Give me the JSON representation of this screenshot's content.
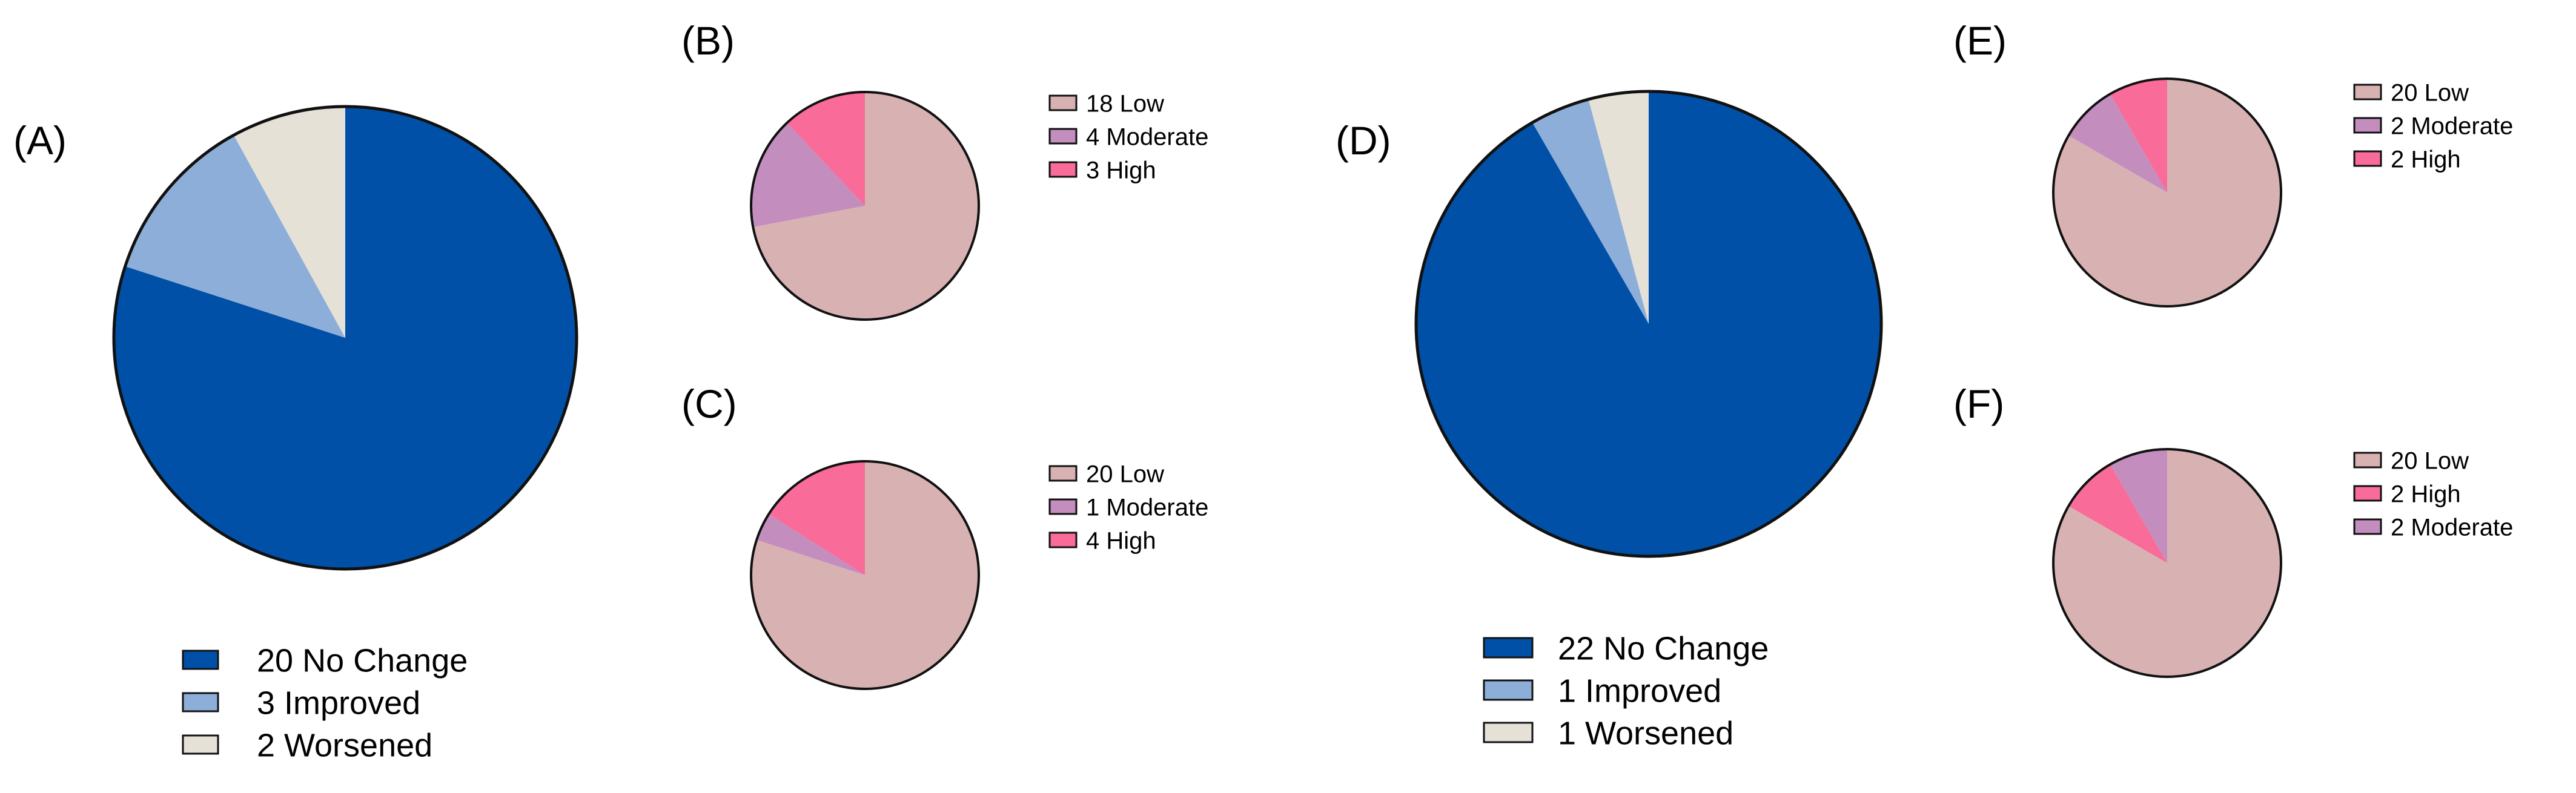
{
  "chart_data": [
    {
      "type": "pie",
      "panel": "(A)",
      "categories": [
        "No Change",
        "Improved",
        "Worsened"
      ],
      "values": [
        20,
        3,
        2
      ],
      "legend_labels": [
        "20 No Change",
        "3 Improved",
        "2 Worsened"
      ],
      "colors": [
        "#0050a8",
        "#8daed8",
        "#e6e1d7"
      ],
      "legend_position": "bottom"
    },
    {
      "type": "pie",
      "panel": "(B)",
      "categories": [
        "Low",
        "Moderate",
        "High"
      ],
      "values": [
        18,
        4,
        3
      ],
      "legend_labels": [
        "18 Low",
        "4 Moderate",
        "3 High"
      ],
      "colors": [
        "#d8b2b2",
        "#c38dbe",
        "#f96b99"
      ],
      "legend_position": "right"
    },
    {
      "type": "pie",
      "panel": "(C)",
      "categories": [
        "Low",
        "Moderate",
        "High"
      ],
      "values": [
        20,
        1,
        4
      ],
      "legend_labels": [
        "20 Low",
        "1 Moderate",
        "4 High"
      ],
      "colors": [
        "#d8b2b2",
        "#c38dbe",
        "#f96b99"
      ],
      "legend_position": "right"
    },
    {
      "type": "pie",
      "panel": "(D)",
      "categories": [
        "No Change",
        "Improved",
        "Worsened"
      ],
      "values": [
        22,
        1,
        1
      ],
      "legend_labels": [
        "22 No Change",
        "1 Improved",
        "1 Worsened"
      ],
      "colors": [
        "#0050a8",
        "#8daed8",
        "#e6e1d7"
      ],
      "legend_position": "bottom"
    },
    {
      "type": "pie",
      "panel": "(E)",
      "categories": [
        "Low",
        "Moderate",
        "High"
      ],
      "values": [
        20,
        2,
        2
      ],
      "legend_labels": [
        "20 Low",
        "2 Moderate",
        "2 High"
      ],
      "colors": [
        "#d8b2b2",
        "#c38dbe",
        "#f96b99"
      ],
      "legend_position": "right"
    },
    {
      "type": "pie",
      "panel": "(F)",
      "categories": [
        "Low",
        "High",
        "Moderate"
      ],
      "values": [
        20,
        2,
        2
      ],
      "legend_labels": [
        "20 Low",
        "2 High",
        "2 Moderate"
      ],
      "colors": [
        "#d8b2b2",
        "#f96b99",
        "#c38dbe"
      ],
      "legend_position": "right"
    }
  ]
}
